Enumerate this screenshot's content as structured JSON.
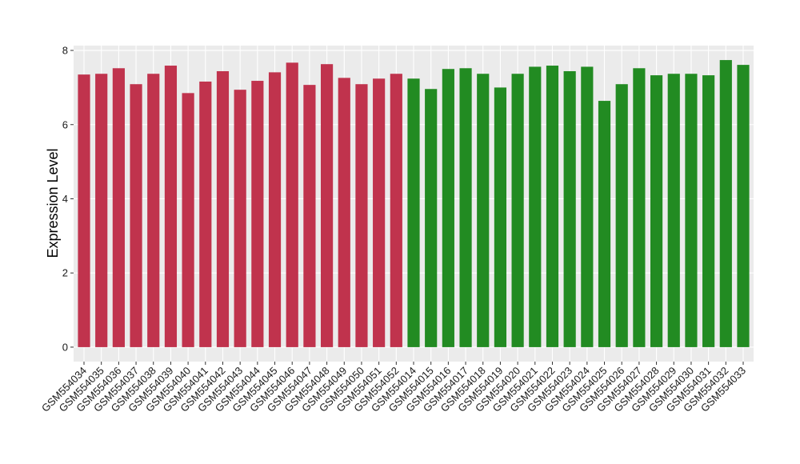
{
  "chart_data": {
    "type": "bar",
    "y_label": "Expression Level",
    "categories": [
      "GSM554034",
      "GSM554035",
      "GSM554036",
      "GSM554037",
      "GSM554038",
      "GSM554039",
      "GSM554040",
      "GSM554041",
      "GSM554042",
      "GSM554043",
      "GSM554044",
      "GSM554045",
      "GSM554046",
      "GSM554047",
      "GSM554048",
      "GSM554049",
      "GSM554050",
      "GSM554051",
      "GSM554052",
      "GSM554014",
      "GSM554015",
      "GSM554016",
      "GSM554017",
      "GSM554018",
      "GSM554019",
      "GSM554020",
      "GSM554021",
      "GSM554022",
      "GSM554023",
      "GSM554024",
      "GSM554025",
      "GSM554026",
      "GSM554027",
      "GSM554028",
      "GSM554029",
      "GSM554030",
      "GSM554031",
      "GSM554032",
      "GSM554033"
    ],
    "values": [
      7.35,
      7.37,
      7.52,
      7.09,
      7.37,
      7.59,
      6.85,
      7.16,
      7.44,
      6.94,
      7.18,
      7.41,
      7.67,
      7.07,
      7.63,
      7.26,
      7.09,
      7.24,
      7.37,
      7.24,
      6.96,
      7.5,
      7.52,
      7.37,
      7.0,
      7.37,
      7.56,
      7.59,
      7.44,
      7.56,
      6.64,
      7.09,
      7.52,
      7.33,
      7.37,
      7.37,
      7.33,
      7.74,
      7.61
    ],
    "colors": [
      "#c0334d",
      "#c0334d",
      "#c0334d",
      "#c0334d",
      "#c0334d",
      "#c0334d",
      "#c0334d",
      "#c0334d",
      "#c0334d",
      "#c0334d",
      "#c0334d",
      "#c0334d",
      "#c0334d",
      "#c0334d",
      "#c0334d",
      "#c0334d",
      "#c0334d",
      "#c0334d",
      "#c0334d",
      "#228b22",
      "#228b22",
      "#228b22",
      "#228b22",
      "#228b22",
      "#228b22",
      "#228b22",
      "#228b22",
      "#228b22",
      "#228b22",
      "#228b22",
      "#228b22",
      "#228b22",
      "#228b22",
      "#228b22",
      "#228b22",
      "#228b22",
      "#228b22",
      "#228b22",
      "#228b22"
    ],
    "ylim": [
      -0.39,
      8.13
    ],
    "yticks": [
      0,
      2,
      4,
      6,
      8
    ],
    "grid": true
  }
}
